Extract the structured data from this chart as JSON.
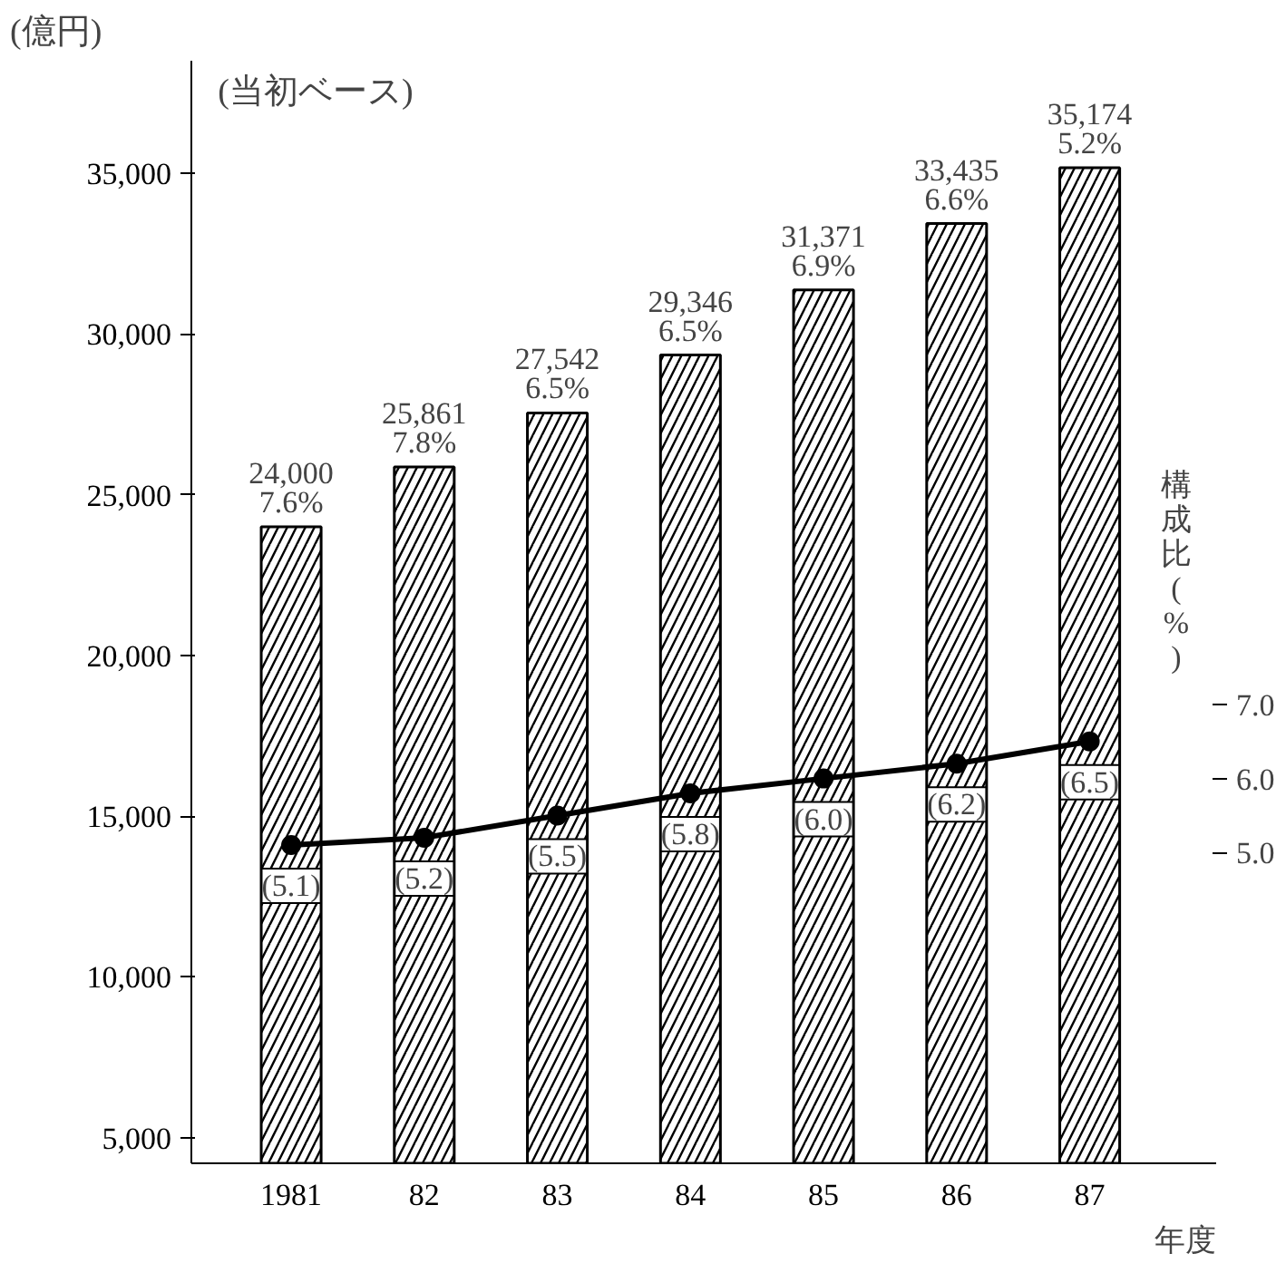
{
  "chart_data": {
    "type": "bar",
    "subtitle": "(当初ベース)",
    "ylabel": "(億円)",
    "xlabel": "年度",
    "y2label": "構成比(%)",
    "categories": [
      "1981",
      "82",
      "83",
      "84",
      "85",
      "86",
      "87"
    ],
    "series": [
      {
        "color": "#000000",
        "values": [
          24000,
          25861,
          27542,
          29346,
          31371,
          33435,
          35174
        ],
        "value_labels": [
          "24,000",
          "25,861",
          "27,542",
          "29,346",
          "31,371",
          "33,435",
          "35,174"
        ]
      },
      {
        "type": "line",
        "axis": "y2",
        "color": "#000000",
        "values": [
          5.1,
          5.2,
          5.5,
          5.8,
          6.0,
          6.2,
          6.5
        ],
        "value_labels": [
          "(5.1)",
          "(5.2)",
          "(5.5)",
          "(5.8)",
          "(6.0)",
          "(6.2)",
          "(6.5)"
        ]
      }
    ],
    "annotations": [
      {
        "text": "7.6%",
        "x": "1981",
        "y": 24000
      },
      {
        "text": "7.8%",
        "x": "82",
        "y": 25861
      },
      {
        "text": "6.5%",
        "x": "83",
        "y": 27542
      },
      {
        "text": "6.5%",
        "x": "84",
        "y": 29346
      },
      {
        "text": "6.9%",
        "x": "85",
        "y": 31371
      },
      {
        "text": "6.6%",
        "x": "86",
        "y": 33435
      },
      {
        "text": "5.2%",
        "x": "87",
        "y": 35174
      }
    ],
    "ylim": [
      4200,
      38500
    ],
    "yticks": [
      {
        "value": 5000,
        "label": "5,000"
      },
      {
        "value": 10000,
        "label": "10,000"
      },
      {
        "value": 15000,
        "label": "15,000"
      },
      {
        "value": 20000,
        "label": "20,000"
      },
      {
        "value": 25000,
        "label": "25,000"
      },
      {
        "value": 30000,
        "label": "30,000"
      },
      {
        "value": 35000,
        "label": "35,000"
      }
    ],
    "y2lim": [
      0.8,
      15.7
    ],
    "y2ticks": [
      {
        "value": 5,
        "label": "5.0"
      },
      {
        "value": 6,
        "label": "6.0"
      },
      {
        "value": 7,
        "label": "7.0"
      }
    ],
    "grid": false,
    "marker": "circle",
    "line_style": "solid"
  }
}
